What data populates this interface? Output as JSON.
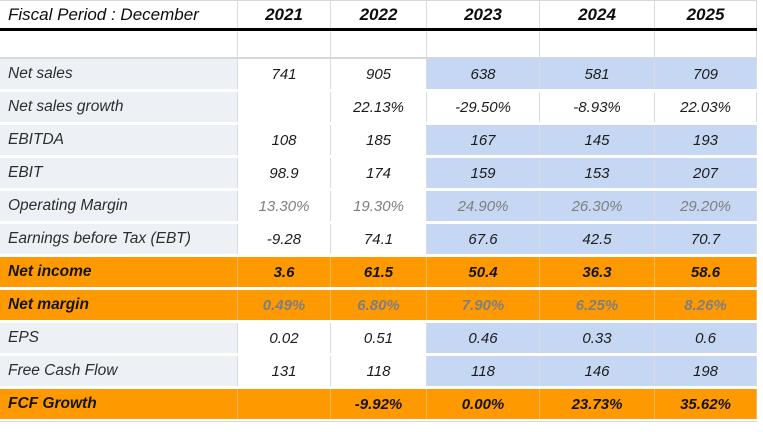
{
  "header": {
    "fiscal_period_label": "Fiscal Period : December",
    "years": [
      "2021",
      "2022",
      "2023",
      "2024",
      "2025"
    ]
  },
  "table": {
    "rows": [
      {
        "label": "Net sales",
        "values": [
          "741",
          "905",
          "638",
          "581",
          "709"
        ]
      },
      {
        "label": "Net sales growth",
        "values": [
          "",
          "22.13%",
          "-29.50%",
          "-8.93%",
          "22.03%"
        ]
      },
      {
        "label": "EBITDA",
        "values": [
          "108",
          "185",
          "167",
          "145",
          "193"
        ]
      },
      {
        "label": "EBIT",
        "values": [
          "98.9",
          "174",
          "159",
          "153",
          "207"
        ]
      },
      {
        "label": "Operating Margin",
        "values": [
          "13.30%",
          "19.30%",
          "24.90%",
          "26.30%",
          "29.20%"
        ]
      },
      {
        "label": "Earnings before Tax (EBT)",
        "values": [
          "-9.28",
          "74.1",
          "67.6",
          "42.5",
          "70.7"
        ]
      },
      {
        "label": "Net income",
        "values": [
          "3.6",
          "61.5",
          "50.4",
          "36.3",
          "58.6"
        ]
      },
      {
        "label": "Net margin",
        "values": [
          "0.49%",
          "6.80%",
          "7.90%",
          "6.25%",
          "8.26%"
        ]
      },
      {
        "label": "EPS",
        "values": [
          "0.02",
          "0.51",
          "0.46",
          "0.33",
          "0.6"
        ]
      },
      {
        "label": "Free Cash Flow",
        "values": [
          "131",
          "118",
          "118",
          "146",
          "198"
        ]
      },
      {
        "label": "FCF Growth",
        "values": [
          "",
          "-9.92%",
          "0.00%",
          "23.73%",
          "35.62%"
        ]
      }
    ]
  },
  "colors": {
    "highlight_orange": "#FF9900",
    "estimate_blue": "#C5D7F2",
    "label_bg_gray": "#EDF0F5",
    "gray_value_text": "#7F7F7F"
  },
  "chart_data": {
    "type": "table",
    "title": "Fiscal Period : December",
    "categories": [
      "2021",
      "2022",
      "2023",
      "2024",
      "2025"
    ],
    "series": [
      {
        "name": "Net sales",
        "values": [
          741,
          905,
          638,
          581,
          709
        ]
      },
      {
        "name": "Net sales growth",
        "values": [
          null,
          "22.13%",
          "-29.50%",
          "-8.93%",
          "22.03%"
        ]
      },
      {
        "name": "EBITDA",
        "values": [
          108,
          185,
          167,
          145,
          193
        ]
      },
      {
        "name": "EBIT",
        "values": [
          98.9,
          174,
          159,
          153,
          207
        ]
      },
      {
        "name": "Operating Margin",
        "values": [
          "13.30%",
          "19.30%",
          "24.90%",
          "26.30%",
          "29.20%"
        ]
      },
      {
        "name": "Earnings before Tax (EBT)",
        "values": [
          -9.28,
          74.1,
          67.6,
          42.5,
          70.7
        ]
      },
      {
        "name": "Net income",
        "values": [
          3.6,
          61.5,
          50.4,
          36.3,
          58.6
        ]
      },
      {
        "name": "Net margin",
        "values": [
          "0.49%",
          "6.80%",
          "7.90%",
          "6.25%",
          "8.26%"
        ]
      },
      {
        "name": "EPS",
        "values": [
          0.02,
          0.51,
          0.46,
          0.33,
          0.6
        ]
      },
      {
        "name": "Free Cash Flow",
        "values": [
          131,
          118,
          118,
          146,
          198
        ]
      },
      {
        "name": "FCF Growth",
        "values": [
          null,
          "-9.92%",
          "0.00%",
          "23.73%",
          "35.62%"
        ]
      }
    ],
    "layout_hints": {
      "estimate_columns_highlighted": [
        "2023",
        "2024",
        "2025"
      ],
      "orange_rows": [
        "Net income",
        "Net margin",
        "FCF Growth"
      ]
    }
  }
}
